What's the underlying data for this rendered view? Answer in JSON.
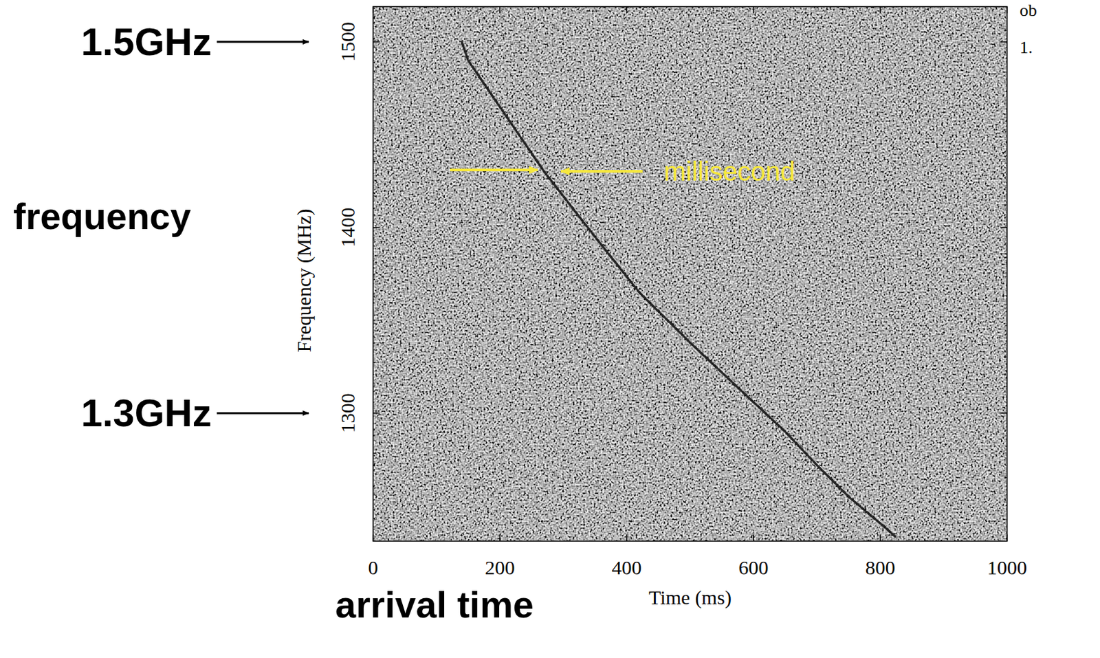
{
  "chart_data": {
    "type": "line",
    "x_label": "Time (ms)",
    "y_label": "Frequency (MHz)",
    "x": [
      140,
      150,
      200,
      270,
      350,
      420,
      500,
      584,
      650,
      700,
      750,
      809,
      825
    ],
    "values": [
      1500,
      1490,
      1465,
      1430,
      1395,
      1365,
      1338,
      1311,
      1290,
      1272,
      1255,
      1238,
      1233
    ],
    "color": "#151515",
    "xlim": [
      0,
      1000
    ],
    "ylim": [
      1231,
      1519
    ],
    "xticks": [
      0,
      200,
      400,
      600,
      800,
      1000
    ],
    "yticks": [
      1300,
      1400,
      1500
    ],
    "grid": false,
    "annotations": [
      {
        "text": "1.5GHz",
        "value": 1500
      },
      {
        "text": "1.3GHz",
        "value": 1300
      },
      {
        "text": "frequency"
      },
      {
        "text": "arrival time"
      },
      {
        "text": "millisecond"
      },
      {
        "text": "ob"
      },
      {
        "text": "1."
      }
    ]
  }
}
